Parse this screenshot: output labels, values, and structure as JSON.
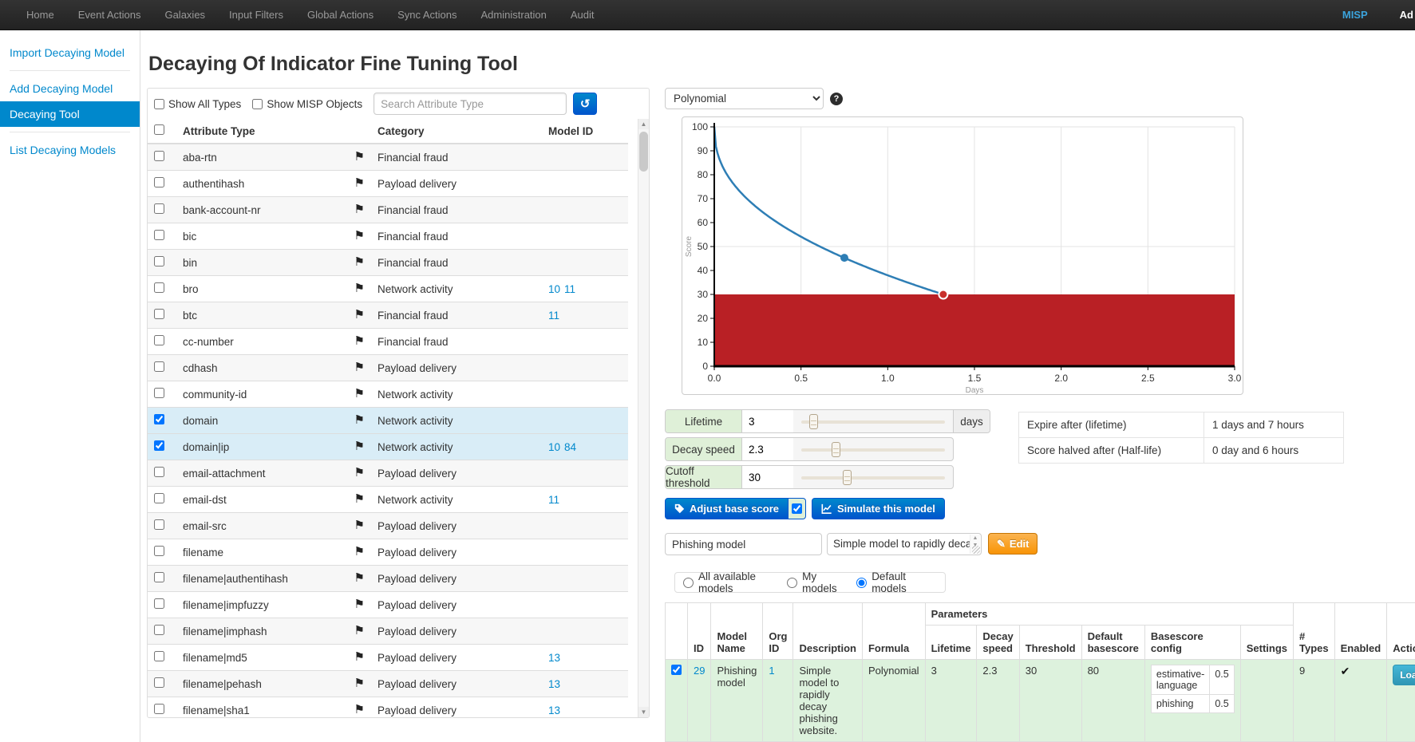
{
  "navbar": {
    "items": [
      "Home",
      "Event Actions",
      "Galaxies",
      "Input Filters",
      "Global Actions",
      "Sync Actions",
      "Administration",
      "Audit"
    ],
    "brand": "MISP",
    "user_label": "Ad"
  },
  "sidebar": {
    "items": [
      {
        "label": "Import Decaying Model",
        "active": false
      },
      {
        "label": "Add Decaying Model",
        "active": false
      },
      {
        "label": "Decaying Tool",
        "active": true
      },
      {
        "label": "List Decaying Models",
        "active": false
      }
    ]
  },
  "page": {
    "title": "Decaying Of Indicator Fine Tuning Tool"
  },
  "filters": {
    "show_all_types_label": "Show All Types",
    "show_all_types_checked": false,
    "show_misp_objects_label": "Show MISP Objects",
    "show_misp_objects_checked": false,
    "search_placeholder": "Search Attribute Type",
    "refresh_icon": "undo-rotate"
  },
  "attribute_table": {
    "columns": [
      "Attribute Type",
      "Category",
      "Model ID"
    ],
    "rows": [
      {
        "type": "aba-rtn",
        "category": "Financial fraud",
        "model_ids": [],
        "checked": false
      },
      {
        "type": "authentihash",
        "category": "Payload delivery",
        "model_ids": [],
        "checked": false
      },
      {
        "type": "bank-account-nr",
        "category": "Financial fraud",
        "model_ids": [],
        "checked": false
      },
      {
        "type": "bic",
        "category": "Financial fraud",
        "model_ids": [],
        "checked": false
      },
      {
        "type": "bin",
        "category": "Financial fraud",
        "model_ids": [],
        "checked": false
      },
      {
        "type": "bro",
        "category": "Network activity",
        "model_ids": [
          "10",
          "11"
        ],
        "checked": false
      },
      {
        "type": "btc",
        "category": "Financial fraud",
        "model_ids": [
          "11"
        ],
        "checked": false
      },
      {
        "type": "cc-number",
        "category": "Financial fraud",
        "model_ids": [],
        "checked": false
      },
      {
        "type": "cdhash",
        "category": "Payload delivery",
        "model_ids": [],
        "checked": false
      },
      {
        "type": "community-id",
        "category": "Network activity",
        "model_ids": [],
        "checked": false
      },
      {
        "type": "domain",
        "category": "Network activity",
        "model_ids": [],
        "checked": true
      },
      {
        "type": "domain|ip",
        "category": "Network activity",
        "model_ids": [
          "10",
          "84"
        ],
        "checked": true
      },
      {
        "type": "email-attachment",
        "category": "Payload delivery",
        "model_ids": [],
        "checked": false
      },
      {
        "type": "email-dst",
        "category": "Network activity",
        "model_ids": [
          "11"
        ],
        "checked": false
      },
      {
        "type": "email-src",
        "category": "Payload delivery",
        "model_ids": [],
        "checked": false
      },
      {
        "type": "filename",
        "category": "Payload delivery",
        "model_ids": [],
        "checked": false
      },
      {
        "type": "filename|authentihash",
        "category": "Payload delivery",
        "model_ids": [],
        "checked": false
      },
      {
        "type": "filename|impfuzzy",
        "category": "Payload delivery",
        "model_ids": [],
        "checked": false
      },
      {
        "type": "filename|imphash",
        "category": "Payload delivery",
        "model_ids": [],
        "checked": false
      },
      {
        "type": "filename|md5",
        "category": "Payload delivery",
        "model_ids": [
          "13"
        ],
        "checked": false
      },
      {
        "type": "filename|pehash",
        "category": "Payload delivery",
        "model_ids": [
          "13"
        ],
        "checked": false
      },
      {
        "type": "filename|sha1",
        "category": "Payload delivery",
        "model_ids": [
          "13"
        ],
        "checked": false
      }
    ]
  },
  "formula_select": {
    "value": "Polynomial"
  },
  "chart_data": {
    "type": "line",
    "title": "",
    "xlabel": "Days",
    "ylabel": "Score",
    "xlim": [
      0,
      3
    ],
    "ylim": [
      0,
      100
    ],
    "x_ticks": [
      0.0,
      0.5,
      1.0,
      1.5,
      2.0,
      2.5,
      3.0
    ],
    "y_ticks": [
      0,
      10,
      20,
      30,
      40,
      50,
      60,
      70,
      80,
      90,
      100
    ],
    "h_gridlines": [
      50,
      100
    ],
    "grid": true,
    "formula": "polynomial",
    "base_score": 100,
    "lifetime_days": 3,
    "decay_speed": 2.3,
    "cutoff_threshold": 30,
    "curve_color": "#2e7eb5",
    "threshold_region_color": "#b92025",
    "markers": [
      {
        "x": 0.75,
        "y": 45.3,
        "name": "curve-point",
        "color": "#2e7eb5"
      },
      {
        "x": 1.32,
        "y": 30,
        "name": "cutoff-point",
        "color": "#c9302c"
      }
    ]
  },
  "sliders": [
    {
      "label": "Lifetime",
      "value": "3",
      "suffix": "days",
      "handle_pos": 0.1
    },
    {
      "label": "Decay speed",
      "value": "2.3",
      "suffix": "",
      "handle_pos": 0.24
    },
    {
      "label": "Cutoff threshold",
      "value": "30",
      "suffix": "",
      "handle_pos": 0.31
    }
  ],
  "info_table": [
    {
      "label": "Expire after (lifetime)",
      "value": "1 days and 7 hours"
    },
    {
      "label": "Score halved after (Half-life)",
      "value": "0 day and 6 hours"
    }
  ],
  "buttons": {
    "adjust_base_score": "Adjust base score",
    "adjust_checkbox_checked": true,
    "simulate": "Simulate this model",
    "edit": "Edit"
  },
  "model_form": {
    "name_value": "Phishing model",
    "description_value": "Simple model to rapidly decay"
  },
  "model_filters": [
    {
      "label": "All available models",
      "selected": false
    },
    {
      "label": "My models",
      "selected": false
    },
    {
      "label": "Default models",
      "selected": true
    }
  ],
  "models_table": {
    "group_header": "Parameters",
    "columns": {
      "id": "ID",
      "model_name": "Model Name",
      "org_id": "Org ID",
      "description": "Description",
      "formula": "Formula",
      "lifetime": "Lifetime",
      "decay_speed": "Decay speed",
      "threshold": "Threshold",
      "default_basescore": "Default basescore",
      "basescore_config": "Basescore config",
      "settings": "Settings",
      "num_types": "# Types",
      "enabled": "Enabled",
      "action": "Action"
    },
    "rows": [
      {
        "checked": true,
        "id": "29",
        "model_name": "Phishing model",
        "org_id": "1",
        "description": "Simple model to rapidly decay phishing website.",
        "formula": "Polynomial",
        "lifetime": "3",
        "decay_speed": "2.3",
        "threshold": "30",
        "default_basescore": "80",
        "basescore_config": [
          {
            "tag": "estimative-language",
            "weight": "0.5"
          },
          {
            "tag": "phishing",
            "weight": "0.5"
          }
        ],
        "settings": "",
        "num_types": "9",
        "enabled": true,
        "load_label": "Load model"
      }
    ]
  }
}
